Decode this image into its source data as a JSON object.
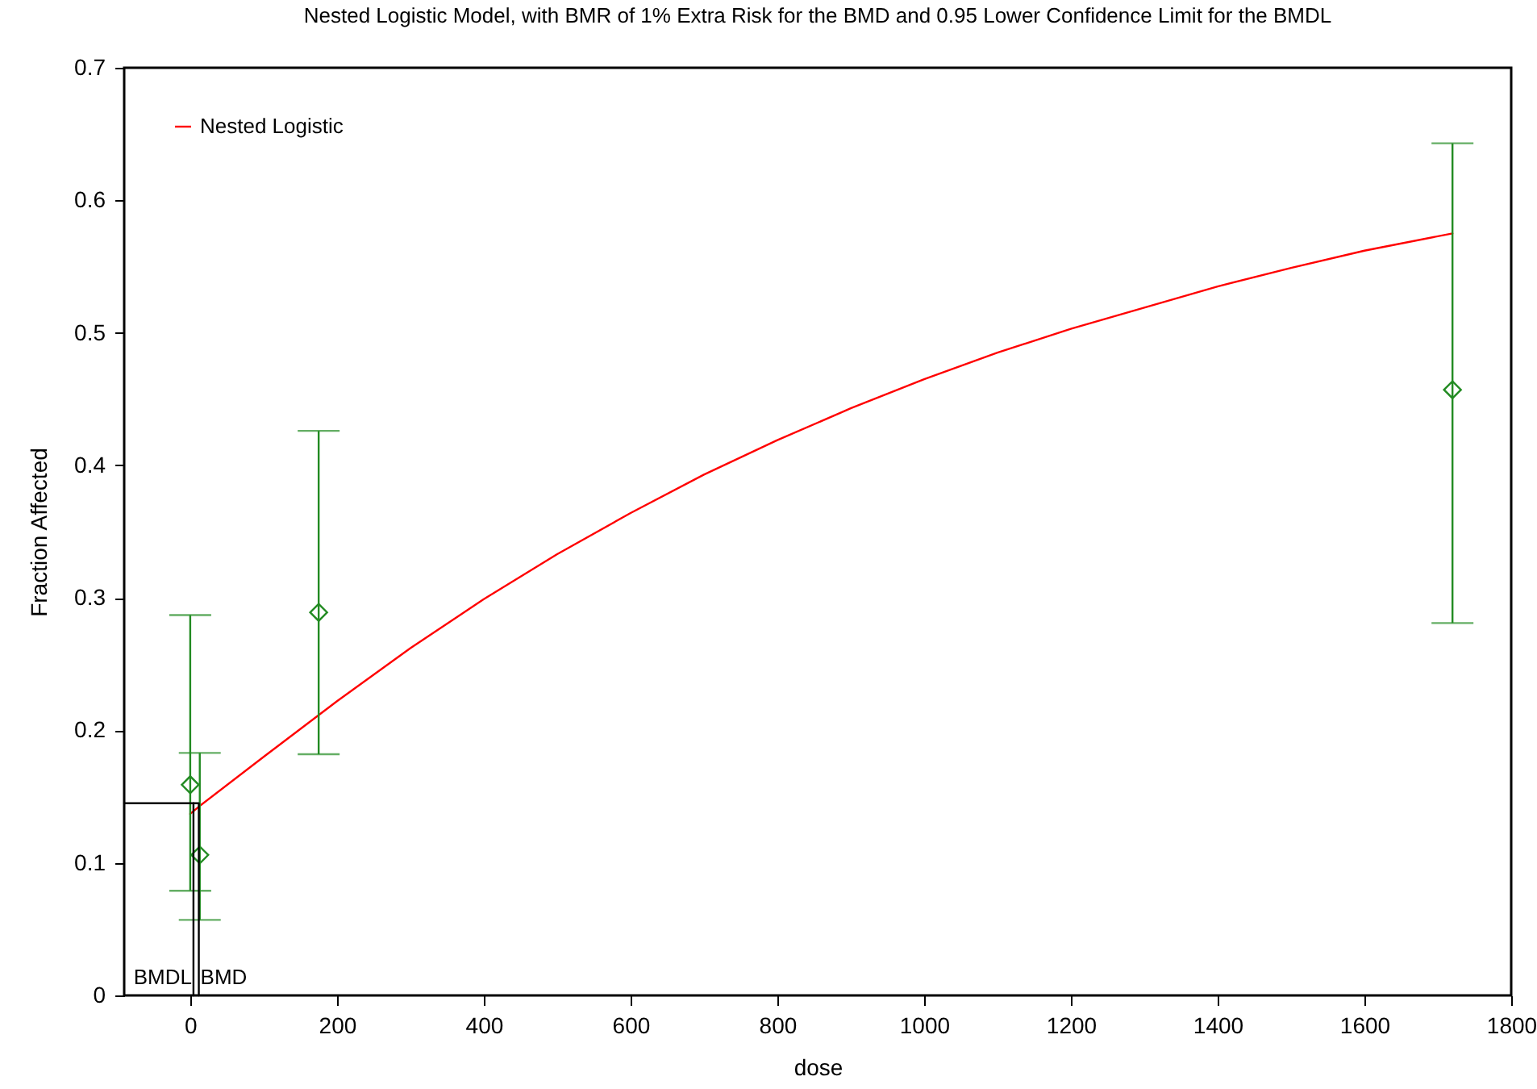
{
  "chart_data": {
    "type": "scatter",
    "title": "Nested Logistic Model, with BMR of 1% Extra Risk for the BMD and 0.95 Lower Confidence Limit for the BMDL",
    "xlabel": "dose",
    "ylabel": "Fraction Affected",
    "xlim": [
      -90,
      1800
    ],
    "xticks": [
      0,
      200,
      400,
      600,
      800,
      1000,
      1200,
      1400,
      1600,
      1800
    ],
    "ylim": [
      0,
      0.7
    ],
    "yticks": [
      0,
      0.1,
      0.2,
      0.3,
      0.4,
      0.5,
      0.6,
      0.7
    ],
    "legend": "top left",
    "grid": false,
    "series": [
      {
        "name": "Nested Logistic",
        "type": "line",
        "color": "#ff0000",
        "x": [
          0,
          13,
          100,
          200,
          300,
          400,
          500,
          600,
          700,
          800,
          900,
          1000,
          1100,
          1200,
          1300,
          1400,
          1500,
          1600,
          1720
        ],
        "values": [
          0.137,
          0.143,
          0.18,
          0.222,
          0.262,
          0.299,
          0.333,
          0.364,
          0.393,
          0.419,
          0.443,
          0.465,
          0.485,
          0.503,
          0.519,
          0.535,
          0.549,
          0.562,
          0.575
        ]
      },
      {
        "marker": "diamond",
        "color": "#228b22",
        "x": [
          0,
          13,
          175,
          1720
        ],
        "values": [
          0.159,
          0.106,
          0.289,
          0.457
        ],
        "errors": [
          [
            0.079,
            0.287
          ],
          [
            0.057,
            0.183
          ],
          [
            0.182,
            0.426
          ],
          [
            0.281,
            0.643
          ]
        ]
      },
      {
        "type": "line",
        "color": "#000000",
        "x": [
          -90,
          11.7,
          11.7
        ],
        "values": [
          0.145,
          0.145,
          0
        ]
      },
      {
        "type": "line",
        "color": "#000000",
        "x": [
          4.4,
          4.4
        ],
        "values": [
          0.145,
          0
        ]
      }
    ],
    "annotations": [
      {
        "text": "BMDL",
        "x": 4.4,
        "y": 0
      },
      {
        "text": "BMD",
        "x": 11.7,
        "y": 0
      }
    ]
  }
}
